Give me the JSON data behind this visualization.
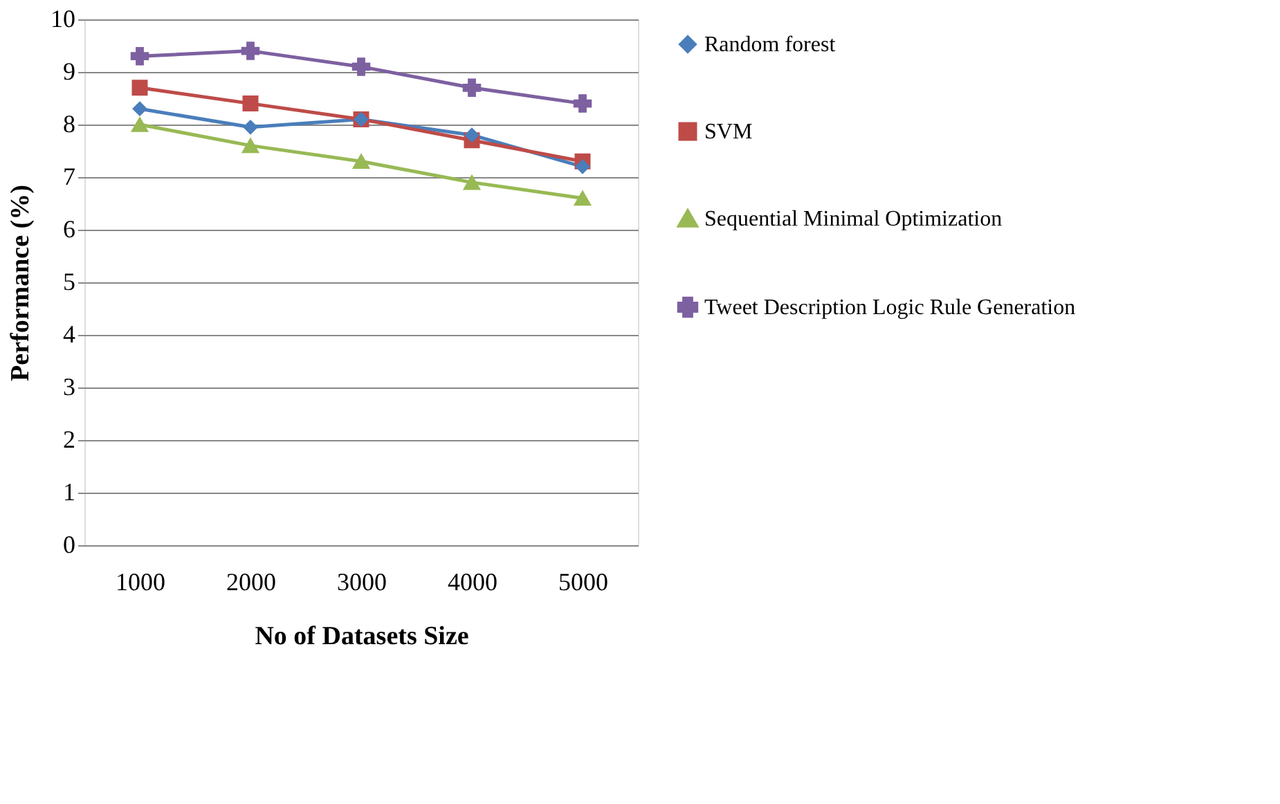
{
  "chart_data": {
    "type": "line",
    "xlabel": "No of Datasets Size",
    "ylabel": "Performance (%)",
    "categories": [
      "1000",
      "2000",
      "3000",
      "4000",
      "5000"
    ],
    "ylim": [
      0,
      10
    ],
    "yticks": [
      0,
      1,
      2,
      3,
      4,
      5,
      6,
      7,
      8,
      9,
      10
    ],
    "grid": "y",
    "legend": "right",
    "line_style": "solid",
    "series": [
      {
        "name": "Random forest",
        "color": "#4a7ebb",
        "marker": "diamond",
        "values": [
          8.3,
          7.95,
          8.1,
          7.8,
          7.2
        ]
      },
      {
        "name": "SVM",
        "color": "#be4b48",
        "marker": "square",
        "values": [
          8.7,
          8.4,
          8.1,
          7.7,
          7.3
        ]
      },
      {
        "name": "Sequential Minimal Optimization",
        "color": "#98b954",
        "marker": "triangle",
        "values": [
          8.0,
          7.6,
          7.3,
          6.9,
          6.6
        ]
      },
      {
        "name": "Tweet Description Logic Rule Generation",
        "color": "#7d60a0",
        "marker": "cross",
        "values": [
          9.3,
          9.4,
          9.1,
          8.7,
          8.4
        ]
      }
    ]
  }
}
